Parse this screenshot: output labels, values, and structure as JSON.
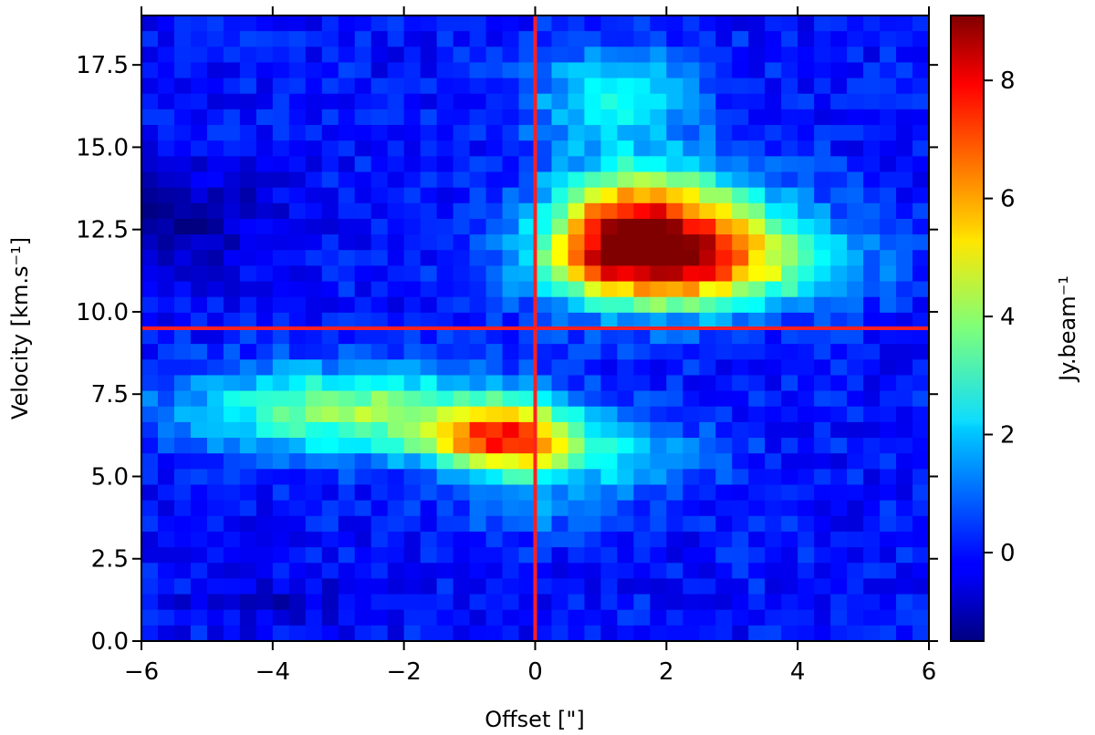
{
  "chart_data": {
    "type": "heatmap",
    "colormap": "jet",
    "xlabel": "Offset [\"]",
    "ylabel": "Velocity [km.s⁻¹]",
    "colorbar_label": "Jy.beam⁻¹",
    "xlim": [
      -6,
      6
    ],
    "ylim": [
      0,
      19
    ],
    "clim": [
      -1.5,
      9.1
    ],
    "x_ticks": [
      -6,
      -4,
      -2,
      0,
      2,
      4,
      6
    ],
    "x_tick_labels": [
      "−6",
      "−4",
      "−2",
      "0",
      "2",
      "4",
      "6"
    ],
    "y_ticks": [
      0.0,
      2.5,
      5.0,
      7.5,
      10.0,
      12.5,
      15.0,
      17.5
    ],
    "y_tick_labels": [
      "0.0",
      "2.5",
      "5.0",
      "7.5",
      "10.0",
      "12.5",
      "15.0",
      "17.5"
    ],
    "colorbar_ticks": [
      0,
      2,
      4,
      6,
      8
    ],
    "colorbar_tick_labels": [
      "0",
      "2",
      "4",
      "6",
      "8"
    ],
    "grid": {
      "x_cells": 48,
      "y_cells": 40
    },
    "emission_components": [
      {
        "name": "upper",
        "center_offset": 1.5,
        "center_velocity": 12.3,
        "peak": 9.0
      },
      {
        "name": "lower",
        "center_offset": -0.5,
        "center_velocity": 6.1,
        "peak": 6.5
      }
    ],
    "reference_lines": {
      "vertical_offset": 0,
      "horizontal_velocity": 9.5,
      "color": "#ff2020"
    }
  }
}
